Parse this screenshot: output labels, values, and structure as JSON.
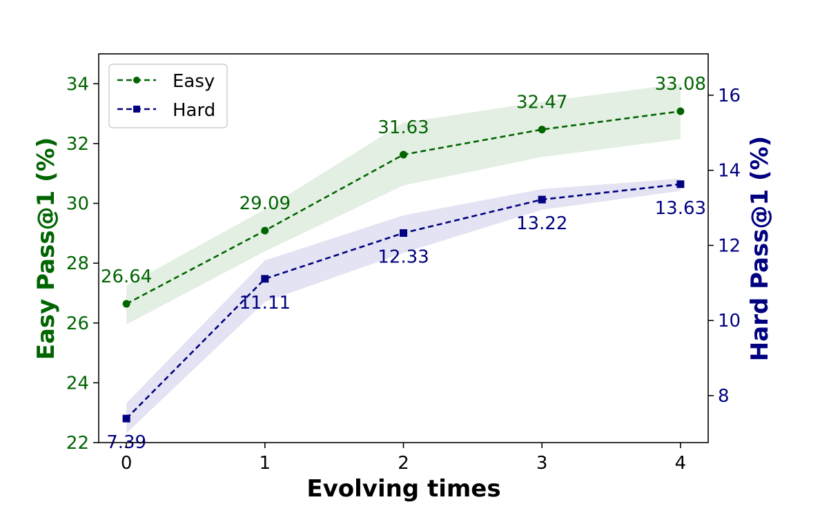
{
  "chart_data": {
    "type": "line",
    "xlabel": "Evolving times",
    "ylabel_left": "Easy Pass@1 (%)",
    "ylabel_right": "Hard Pass@1 (%)",
    "x": [
      0,
      1,
      2,
      3,
      4
    ],
    "xticks": [
      "0",
      "1",
      "2",
      "3",
      "4"
    ],
    "xlim": [
      -0.2,
      4.2
    ],
    "ylim_left": [
      22,
      35
    ],
    "ylim_right": [
      6.75,
      17.1
    ],
    "yticks_left": [
      "22",
      "24",
      "26",
      "28",
      "30",
      "32",
      "34"
    ],
    "yticks_right": [
      "8",
      "10",
      "12",
      "14",
      "16"
    ],
    "grid": false,
    "legend_placement": "top-left",
    "series": [
      {
        "name": "Easy",
        "axis": "left",
        "color": "#006400",
        "band_color": "#e3efe3",
        "marker": "circle",
        "linestyle": "dashed",
        "values": [
          26.64,
          29.09,
          31.63,
          32.47,
          33.08
        ],
        "band_lower": [
          25.95,
          28.4,
          30.6,
          31.55,
          32.15
        ],
        "band_upper": [
          27.25,
          29.8,
          32.7,
          33.4,
          34.0
        ],
        "labels": [
          "26.64",
          "29.09",
          "31.63",
          "32.47",
          "33.08"
        ]
      },
      {
        "name": "Hard",
        "axis": "right",
        "color": "#000080",
        "band_color": "#e3e3f3",
        "marker": "square",
        "linestyle": "dashed",
        "values": [
          7.39,
          11.11,
          12.33,
          13.22,
          13.63
        ],
        "band_lower": [
          7.0,
          10.5,
          11.8,
          12.95,
          13.45
        ],
        "band_upper": [
          7.8,
          11.6,
          12.8,
          13.5,
          13.78
        ],
        "labels": [
          "7.39",
          "11.11",
          "12.33",
          "13.22",
          "13.63"
        ]
      }
    ]
  }
}
